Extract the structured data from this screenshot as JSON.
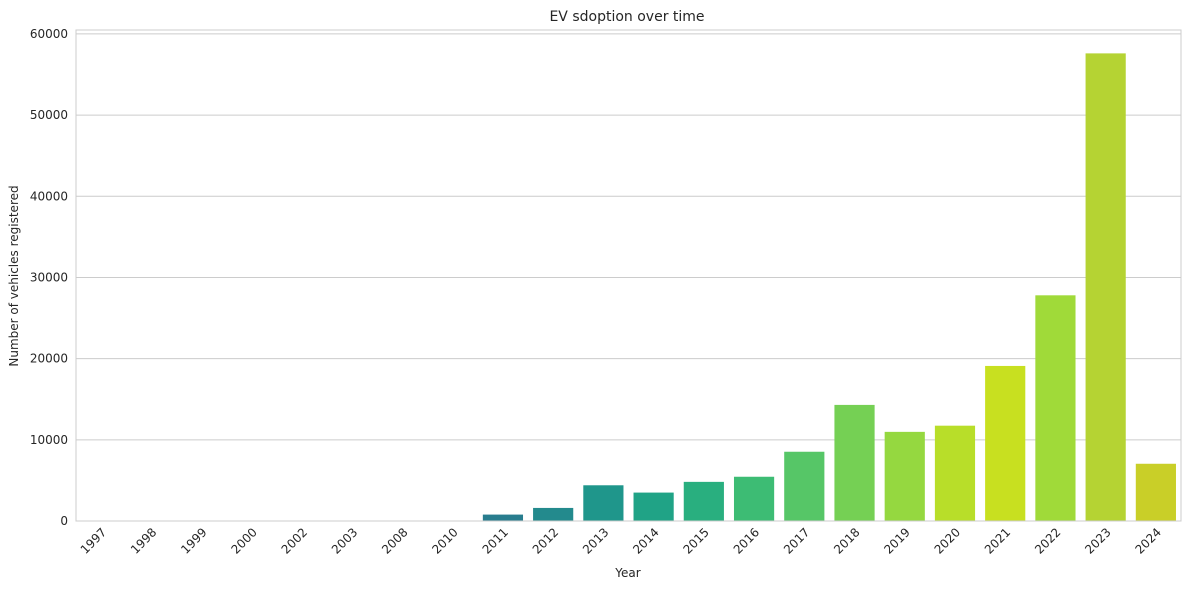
{
  "chart_data": {
    "type": "bar",
    "title": "EV sdoption over time",
    "xlabel": "Year",
    "ylabel": "Number of vehicles registered",
    "categories": [
      "1997",
      "1998",
      "1999",
      "2000",
      "2002",
      "2003",
      "2008",
      "2010",
      "2011",
      "2012",
      "2013",
      "2014",
      "2015",
      "2016",
      "2017",
      "2018",
      "2019",
      "2020",
      "2021",
      "2022",
      "2023",
      "2024"
    ],
    "values": [
      1,
      1,
      2,
      1,
      1,
      1,
      19,
      24,
      790,
      1610,
      4400,
      3500,
      4820,
      5450,
      8530,
      14300,
      10980,
      11740,
      19100,
      27800,
      57600,
      7050
    ],
    "colors": [
      "#440154",
      "#481467",
      "#482576",
      "#453781",
      "#3f4788",
      "#39558c",
      "#32648e",
      "#2d718e",
      "#287d8e",
      "#238a8d",
      "#1f968b",
      "#20a386",
      "#29af7f",
      "#3dbc74",
      "#56c667",
      "#75d054",
      "#95d840",
      "#b8de29",
      "#c8e020",
      "#a0da39",
      "#b5d333",
      "#c9cf28"
    ],
    "yticks": [
      0,
      10000,
      20000,
      30000,
      40000,
      50000,
      60000
    ],
    "ylim": [
      0,
      60480
    ],
    "grid": true,
    "legend": "none"
  }
}
